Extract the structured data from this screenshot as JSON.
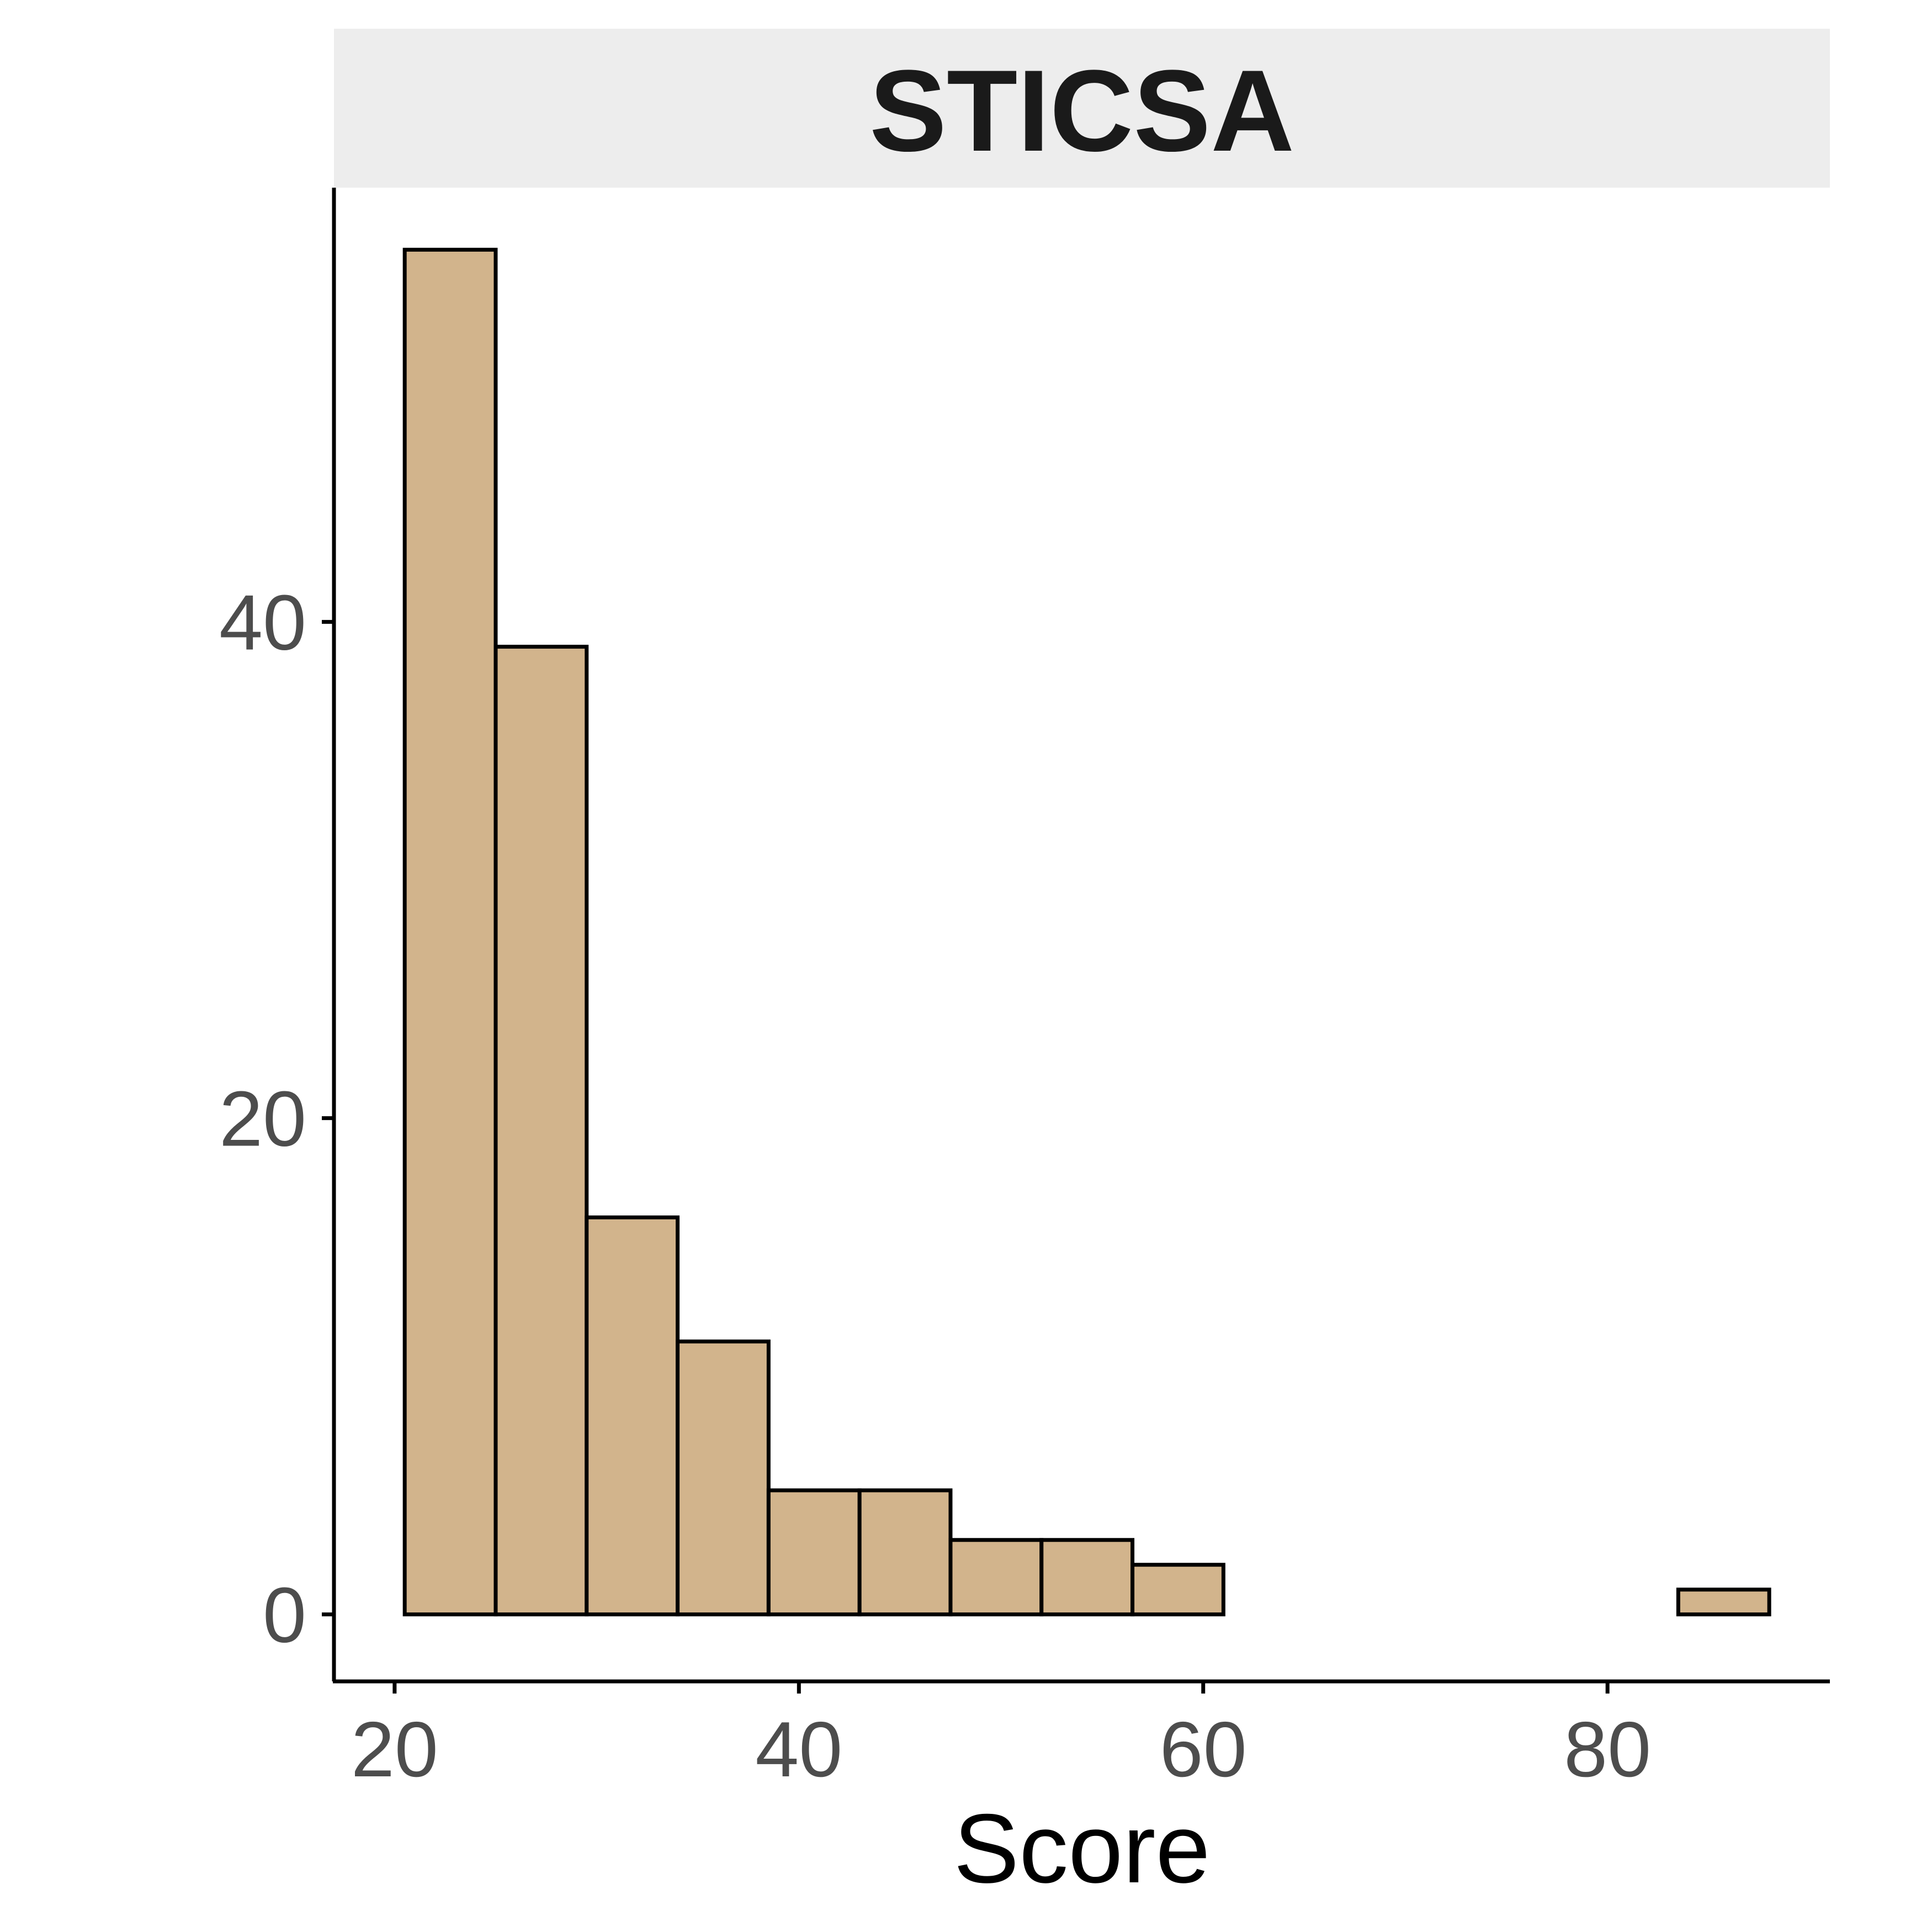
{
  "chart_data": {
    "type": "bar",
    "subtype": "histogram",
    "title": "STICSA",
    "xlabel": "Score",
    "ylabel": "",
    "xlim": [
      17,
      91
    ],
    "ylim": [
      -2.7,
      57.5
    ],
    "x_ticks": [
      20,
      40,
      60,
      80
    ],
    "y_ticks": [
      0,
      20,
      40
    ],
    "bins": [
      {
        "x0": 20.5,
        "x1": 25.0,
        "count": 55
      },
      {
        "x0": 25.0,
        "x1": 29.5,
        "count": 39
      },
      {
        "x0": 29.5,
        "x1": 34.0,
        "count": 16
      },
      {
        "x0": 34.0,
        "x1": 38.5,
        "count": 11
      },
      {
        "x0": 38.5,
        "x1": 43.0,
        "count": 5
      },
      {
        "x0": 43.0,
        "x1": 47.5,
        "count": 5
      },
      {
        "x0": 47.5,
        "x1": 52.0,
        "count": 3
      },
      {
        "x0": 52.0,
        "x1": 56.5,
        "count": 3
      },
      {
        "x0": 56.5,
        "x1": 61.0,
        "count": 2
      },
      {
        "x0": 61.0,
        "x1": 65.5,
        "count": 0
      },
      {
        "x0": 65.5,
        "x1": 70.0,
        "count": 0
      },
      {
        "x0": 70.0,
        "x1": 74.5,
        "count": 0
      },
      {
        "x0": 74.5,
        "x1": 79.0,
        "count": 0
      },
      {
        "x0": 79.0,
        "x1": 83.5,
        "count": 0
      },
      {
        "x0": 83.5,
        "x1": 88.0,
        "count": 1
      }
    ],
    "bar_fill": "#D2B48C",
    "bar_stroke": "#000000",
    "strip_background": "#EDEDED",
    "grid": false
  }
}
